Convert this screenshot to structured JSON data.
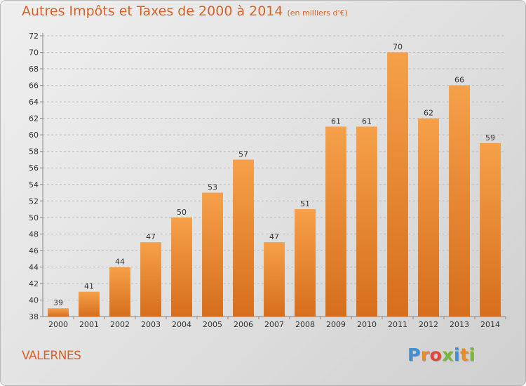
{
  "header": {
    "title": "Autres Impôts et Taxes de 2000 à 2014",
    "subtitle": "(en milliers d'€)"
  },
  "footer": {
    "commune": "VALERNES",
    "logo": {
      "text": "Proxiti",
      "letter_colors": [
        "#3d8fd8",
        "#e98b2a",
        "#e0473a",
        "#7ab83b",
        "#3d8fd8",
        "#e98b2a",
        "#7ab83b"
      ]
    }
  },
  "colors": {
    "accent": "#d6622a",
    "bar_top": "#f6a04a",
    "bar_bottom": "#d66e1d",
    "grid": "#bfbfbf"
  },
  "chart_data": {
    "type": "bar",
    "categories": [
      "2000",
      "2001",
      "2002",
      "2003",
      "2004",
      "2005",
      "2006",
      "2007",
      "2008",
      "2009",
      "2010",
      "2011",
      "2012",
      "2013",
      "2014"
    ],
    "values": [
      39,
      41,
      44,
      47,
      50,
      53,
      57,
      47,
      51,
      61,
      61,
      70,
      62,
      66,
      59
    ],
    "title": "Autres Impôts et Taxes de 2000 à 2014",
    "subtitle": "(en milliers d'€)",
    "ylim": [
      38,
      72
    ],
    "ytick_step": 2,
    "yticks": [
      38,
      40,
      42,
      44,
      46,
      48,
      50,
      52,
      54,
      56,
      58,
      60,
      62,
      64,
      66,
      68,
      70,
      72
    ],
    "grid": true,
    "data_labels": true
  }
}
